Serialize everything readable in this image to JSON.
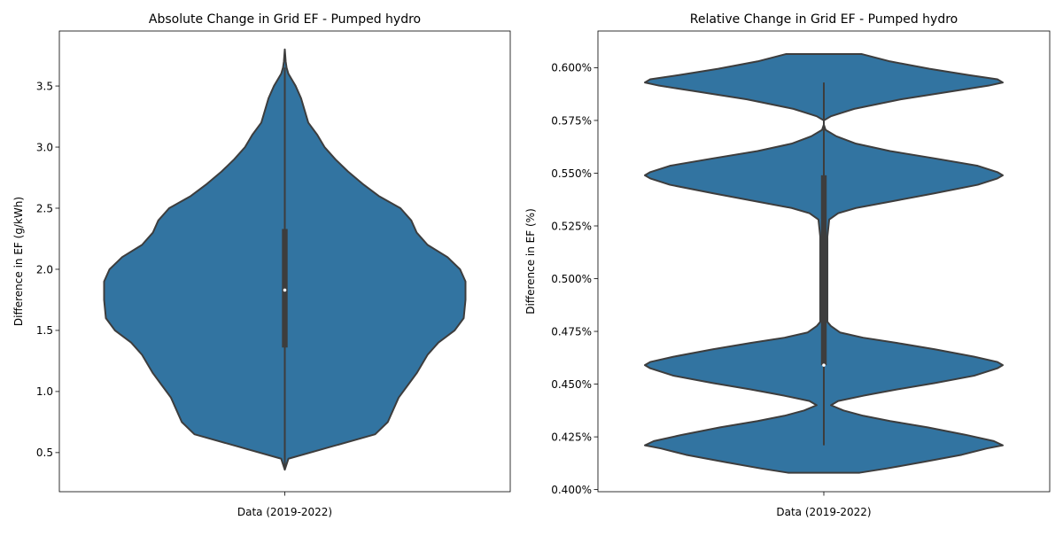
{
  "chart_data": [
    {
      "type": "violin",
      "title": "Absolute Change in Grid EF - Pumped hydro",
      "xlabel": "",
      "ylabel": "Difference in EF (g/kWh)",
      "categories": [
        "Data (2019-2022)"
      ],
      "ylim": [
        0.18,
        3.95
      ],
      "yticks": [
        0.5,
        1.0,
        1.5,
        2.0,
        2.5,
        3.0,
        3.5
      ],
      "ytick_labels": [
        "0.5",
        "1.0",
        "1.5",
        "2.0",
        "2.5",
        "3.0",
        "3.5"
      ],
      "color": "#3274a1",
      "edge_color": "#3d3d3d",
      "density_profile": {
        "y": [
          0.36,
          0.45,
          0.55,
          0.65,
          0.75,
          0.85,
          0.95,
          1.05,
          1.15,
          1.3,
          1.4,
          1.5,
          1.6,
          1.75,
          1.9,
          2.0,
          2.1,
          2.2,
          2.3,
          2.4,
          2.5,
          2.6,
          2.7,
          2.8,
          2.9,
          3.0,
          3.1,
          3.2,
          3.3,
          3.4,
          3.5,
          3.55,
          3.6,
          3.65,
          3.7,
          3.8
        ],
        "width": [
          0.0,
          0.02,
          0.26,
          0.5,
          0.57,
          0.6,
          0.63,
          0.68,
          0.73,
          0.79,
          0.85,
          0.94,
          0.99,
          1.0,
          1.0,
          0.97,
          0.9,
          0.79,
          0.73,
          0.7,
          0.64,
          0.52,
          0.43,
          0.35,
          0.28,
          0.22,
          0.18,
          0.13,
          0.11,
          0.09,
          0.06,
          0.04,
          0.02,
          0.01,
          0.005,
          0.0
        ]
      },
      "box": {
        "q1": 1.36,
        "median": 1.83,
        "q3": 2.33,
        "whisker_low": 0.36,
        "whisker_high": 3.65
      }
    },
    {
      "type": "violin",
      "title": "Relative Change in Grid EF - Pumped hydro",
      "xlabel": "",
      "ylabel": "Difference in EF (%)",
      "categories": [
        "Data (2019-2022)"
      ],
      "ylim": [
        0.399,
        0.6174
      ],
      "yticks": [
        0.4,
        0.425,
        0.45,
        0.475,
        0.5,
        0.525,
        0.55,
        0.575,
        0.6
      ],
      "ytick_labels": [
        "0.400%",
        "0.425%",
        "0.450%",
        "0.475%",
        "0.500%",
        "0.525%",
        "0.550%",
        "0.575%",
        "0.600%"
      ],
      "color": "#3274a1",
      "edge_color": "#3d3d3d",
      "density_profile": {
        "y": [
          0.408,
          0.41,
          0.413,
          0.4165,
          0.4195,
          0.421,
          0.423,
          0.426,
          0.4295,
          0.4325,
          0.435,
          0.4375,
          0.44,
          0.442,
          0.4445,
          0.4475,
          0.4505,
          0.454,
          0.4575,
          0.459,
          0.4605,
          0.463,
          0.4665,
          0.4695,
          0.472,
          0.4745,
          0.4775,
          0.4795,
          0.5,
          0.52,
          0.528,
          0.531,
          0.5335,
          0.5365,
          0.5405,
          0.5445,
          0.5475,
          0.549,
          0.5505,
          0.5535,
          0.557,
          0.5605,
          0.564,
          0.5675,
          0.5705,
          0.573,
          0.575,
          0.577,
          0.5805,
          0.585,
          0.589,
          0.5915,
          0.593,
          0.5945,
          0.5965,
          0.5995,
          0.603,
          0.6065
        ],
        "width": [
          0.2,
          0.35,
          0.55,
          0.77,
          0.91,
          1.0,
          0.95,
          0.79,
          0.58,
          0.37,
          0.22,
          0.11,
          0.04,
          0.08,
          0.22,
          0.41,
          0.62,
          0.84,
          0.97,
          1.0,
          0.97,
          0.84,
          0.62,
          0.41,
          0.22,
          0.09,
          0.04,
          0.02,
          0.02,
          0.02,
          0.03,
          0.08,
          0.18,
          0.37,
          0.62,
          0.86,
          0.97,
          1.0,
          0.97,
          0.86,
          0.62,
          0.37,
          0.18,
          0.07,
          0.01,
          0.0,
          0.0,
          0.04,
          0.17,
          0.43,
          0.73,
          0.92,
          1.0,
          0.97,
          0.81,
          0.59,
          0.37,
          0.21
        ]
      },
      "box": {
        "q1": 0.459,
        "median": 0.459,
        "q3": 0.549,
        "whisker_low": 0.421,
        "whisker_high": 0.593
      }
    }
  ]
}
